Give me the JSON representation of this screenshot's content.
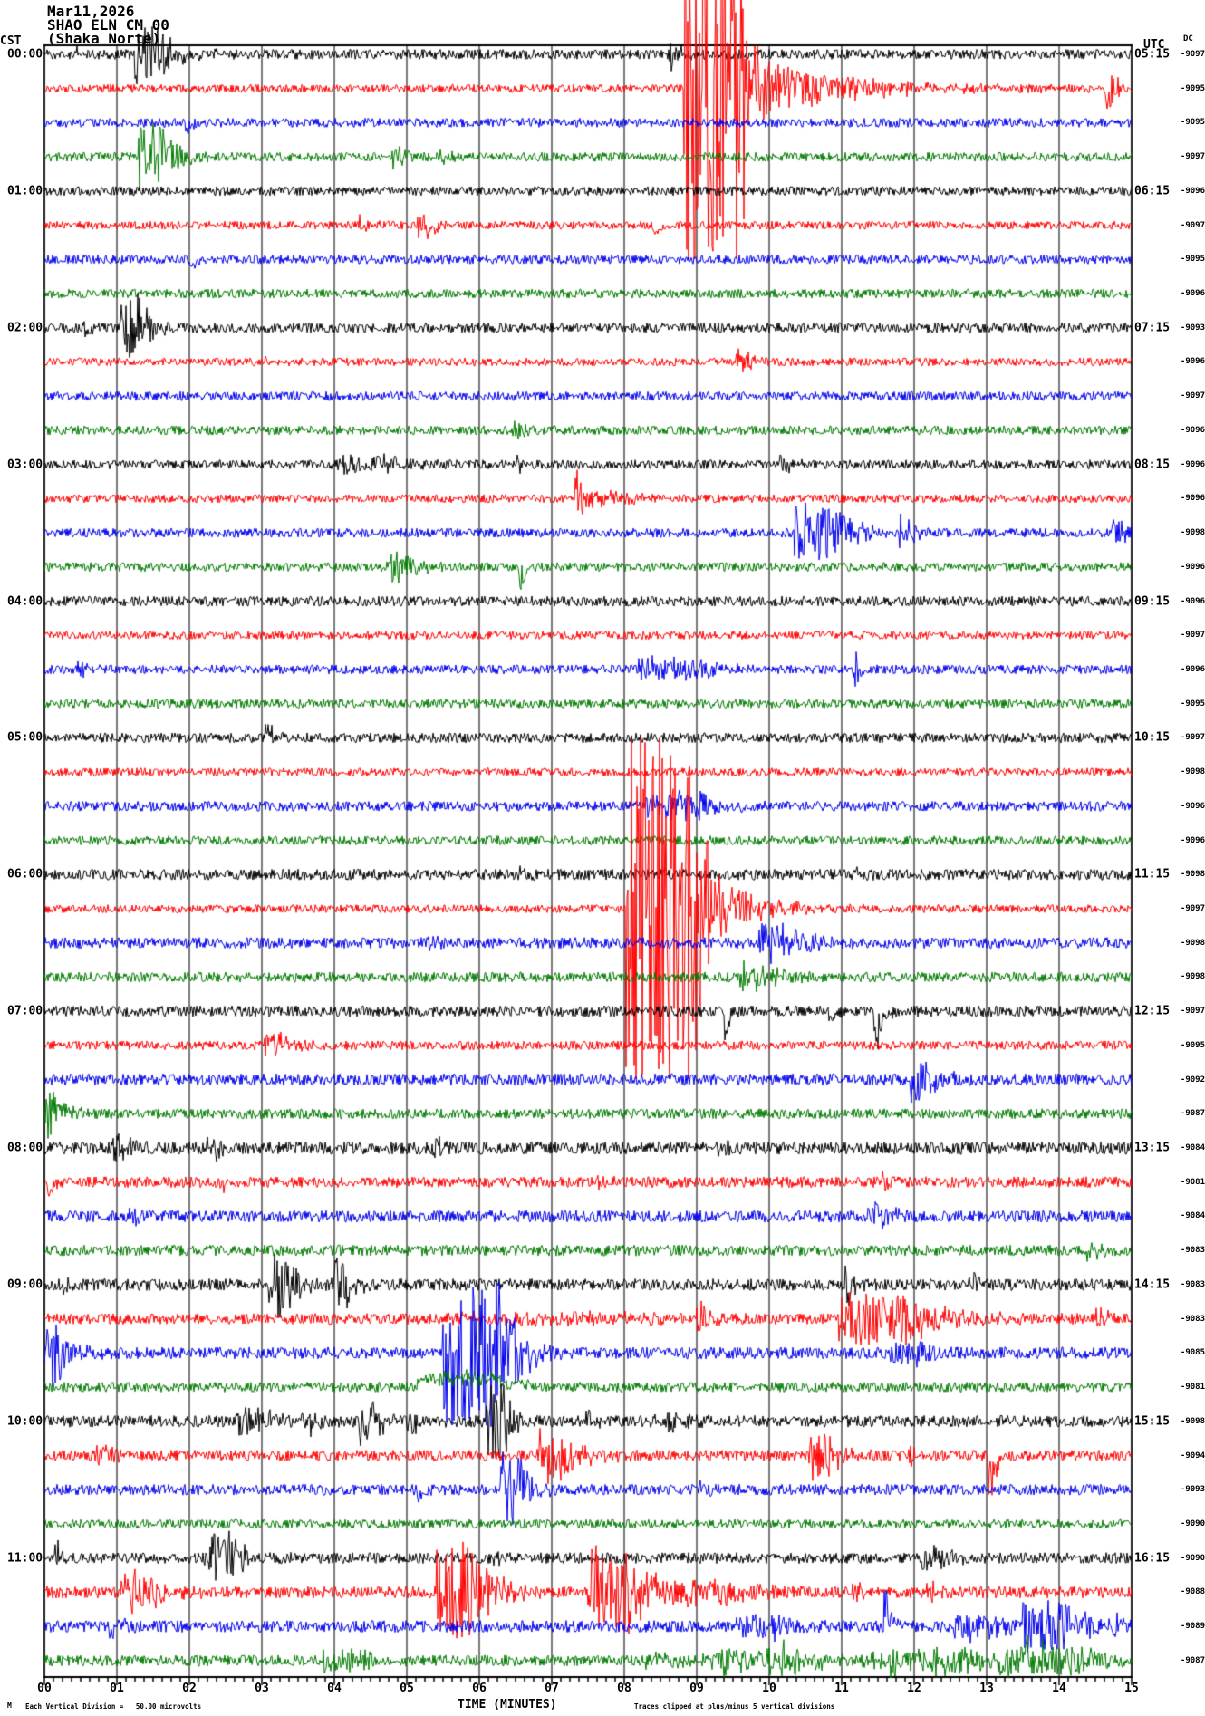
{
  "header": {
    "date": "Mar11,2026",
    "station": "SHAO ELN CM 00",
    "site": "(Shaka Norte)"
  },
  "left_axis": {
    "timezone": "CST",
    "hour_labels": [
      "00:00",
      "01:00",
      "02:00",
      "03:00",
      "04:00",
      "05:00",
      "06:00",
      "07:00",
      "08:00",
      "09:00",
      "10:00",
      "11:00"
    ]
  },
  "right_axis": {
    "timezone": "UTC",
    "dc_header": "DC",
    "hour_labels": [
      "05:15",
      "06:15",
      "07:15",
      "08:15",
      "09:15",
      "10:15",
      "11:15",
      "12:15",
      "13:15",
      "14:15",
      "15:15",
      "16:15"
    ],
    "dc_values": [
      "-9097",
      "-9095",
      "-9095",
      "-9097",
      "-9096",
      "-9097",
      "-9095",
      "-9096",
      "-9093",
      "-9096",
      "-9097",
      "-9096",
      "-9096",
      "-9096",
      "-9098",
      "-9096",
      "-9096",
      "-9097",
      "-9096",
      "-9095",
      "-9097",
      "-9098",
      "-9096",
      "-9096",
      "-9098",
      "-9097",
      "-9098",
      "-9098",
      "-9097",
      "-9095",
      "-9092",
      "-9087",
      "-9084",
      "-9081",
      "-9084",
      "-9083",
      "-9083",
      "-9083",
      "-9085",
      "-9081",
      "-9098",
      "-9094",
      "-9093",
      "-9090",
      "-9090",
      "-9088",
      "-9089",
      "-9087"
    ]
  },
  "x_axis": {
    "title": "TIME (MINUTES)",
    "tick_labels": [
      "00",
      "01",
      "02",
      "03",
      "04",
      "05",
      "06",
      "07",
      "08",
      "09",
      "10",
      "11",
      "12",
      "13",
      "14",
      "15"
    ]
  },
  "footer": {
    "mark": "M",
    "left": "Each Vertical Division =   50.00 microvolts",
    "right": "Traces clipped at plus/minus 5 vertical divisions"
  },
  "colors": {
    "trace_cycle": [
      "#000000",
      "#ff0000",
      "#0000ee",
      "#007a00"
    ],
    "grid": "#7a7a7a",
    "border": "#222222",
    "axis": "#000000",
    "background": "#ffffff"
  },
  "chart_data": {
    "type": "line",
    "subtype": "helicorder-seismogram",
    "x_range": [
      0,
      15
    ],
    "minutes_per_line": 15,
    "lines_per_hour": 4,
    "clip_divisions": 5,
    "microvolts_per_division": 50,
    "grid": "vertical-minute-lines",
    "rows": [
      {
        "b": 5.5,
        "e": [
          {
            "m": 1.25,
            "d": 0.3,
            "a": 30,
            "t": 0.25
          },
          {
            "m": 8.62,
            "d": 0.06,
            "a": 16,
            "t": 0.1
          },
          {
            "m": 0.45,
            "d": 0.06,
            "a": 9,
            "t": 0.06
          }
        ]
      },
      {
        "b": 4.5,
        "e": [
          {
            "m": 8.82,
            "d": 0.78,
            "a": 210,
            "t": 0.12
          },
          {
            "m": 9.6,
            "d": 0.15,
            "a": 40,
            "t": 1.1
          },
          {
            "m": 14.62,
            "d": 0.08,
            "a": 26,
            "t": 0.1
          }
        ]
      },
      {
        "b": 5,
        "e": [
          {
            "m": 1.95,
            "d": 0.04,
            "a": 12,
            "t": 0.06,
            "s": -1
          }
        ]
      },
      {
        "b": 5,
        "e": [
          {
            "m": 1.28,
            "d": 0.3,
            "a": 42,
            "t": 0.2
          },
          {
            "m": 4.8,
            "d": 0.12,
            "a": 12,
            "t": 0.12
          },
          {
            "m": 5.45,
            "d": 0.05,
            "a": 8,
            "t": 0.08
          }
        ]
      },
      {
        "b": 5,
        "e": []
      },
      {
        "b": 4.5,
        "e": [
          {
            "m": 5.15,
            "d": 0.12,
            "a": 14,
            "t": 0.15
          },
          {
            "m": 8.4,
            "d": 0.04,
            "a": 11,
            "t": 0.05,
            "s": -1
          },
          {
            "m": 4.35,
            "d": 0.1,
            "a": 8,
            "t": 0.1
          }
        ]
      },
      {
        "b": 5,
        "e": [
          {
            "m": 2.0,
            "d": 0.04,
            "a": 13,
            "t": 0.05,
            "s": -1
          }
        ]
      },
      {
        "b": 5,
        "e": []
      },
      {
        "b": 5.5,
        "e": [
          {
            "m": 1.05,
            "d": 0.24,
            "a": 36,
            "t": 0.18
          },
          {
            "m": 0.52,
            "d": 0.05,
            "a": 12,
            "t": 0.06
          }
        ]
      },
      {
        "b": 4.5,
        "e": [
          {
            "m": 9.55,
            "d": 0.15,
            "a": 12,
            "t": 0.12
          },
          {
            "m": 3.0,
            "d": 0.05,
            "a": 7,
            "t": 0.05
          }
        ]
      },
      {
        "b": 5,
        "e": []
      },
      {
        "b": 5,
        "e": [
          {
            "m": 6.45,
            "d": 0.1,
            "a": 10,
            "t": 0.1
          }
        ]
      },
      {
        "b": 5,
        "e": [
          {
            "m": 4.05,
            "d": 0.7,
            "a": 8,
            "t": 0.3
          },
          {
            "m": 10.15,
            "d": 0.08,
            "a": 12,
            "t": 0.1
          },
          {
            "m": 6.5,
            "d": 0.05,
            "a": 8,
            "t": 0.05
          }
        ]
      },
      {
        "b": 4.5,
        "e": [
          {
            "m": 7.32,
            "d": 0.05,
            "a": 40,
            "t": 0.06
          },
          {
            "m": 7.4,
            "d": 0.45,
            "a": 9,
            "t": 0.3
          }
        ]
      },
      {
        "b": 5,
        "e": [
          {
            "m": 10.35,
            "d": 0.5,
            "a": 32,
            "t": 0.35
          },
          {
            "m": 11.8,
            "d": 0.1,
            "a": 20,
            "t": 0.12
          },
          {
            "m": 14.72,
            "d": 0.12,
            "a": 14,
            "t": 0.1
          }
        ]
      },
      {
        "b": 5,
        "e": [
          {
            "m": 4.72,
            "d": 0.26,
            "a": 17,
            "t": 0.2
          },
          {
            "m": 6.55,
            "d": 0.04,
            "a": 26,
            "t": 0.06,
            "s": -1
          }
        ]
      },
      {
        "b": 5.5,
        "e": []
      },
      {
        "b": 4.5,
        "e": []
      },
      {
        "b": 5,
        "e": [
          {
            "m": 8.2,
            "d": 0.9,
            "a": 12,
            "t": 0.3
          },
          {
            "m": 11.15,
            "d": 0.05,
            "a": 16,
            "t": 0.08
          },
          {
            "m": 0.45,
            "d": 0.1,
            "a": 8,
            "t": 0.1
          }
        ]
      },
      {
        "b": 5,
        "e": []
      },
      {
        "b": 5.5,
        "e": [
          {
            "m": 3.05,
            "d": 0.06,
            "a": 18,
            "t": 0.08
          }
        ]
      },
      {
        "b": 4.5,
        "e": []
      },
      {
        "b": 5.5,
        "e": [
          {
            "m": 8.3,
            "d": 0.85,
            "a": 14,
            "t": 0.3
          }
        ]
      },
      {
        "b": 5,
        "e": []
      },
      {
        "b": 6,
        "e": [
          {
            "m": 6.55,
            "d": 0.05,
            "a": 9,
            "t": 0.06
          },
          {
            "m": 11.2,
            "d": 0.05,
            "a": 9,
            "t": 0.06
          }
        ]
      },
      {
        "b": 4.5,
        "e": [
          {
            "m": 8.02,
            "d": 0.95,
            "a": 210,
            "t": 0.12
          },
          {
            "m": 8.97,
            "d": 0.2,
            "a": 45,
            "t": 0.55
          }
        ]
      },
      {
        "b": 6,
        "e": [
          {
            "m": 9.85,
            "d": 0.4,
            "a": 20,
            "t": 0.3
          },
          {
            "m": 5.3,
            "d": 0.08,
            "a": 9,
            "t": 0.08
          }
        ]
      },
      {
        "b": 5.5,
        "e": [
          {
            "m": 9.6,
            "d": 0.35,
            "a": 13,
            "t": 0.25
          }
        ]
      },
      {
        "b": 6,
        "e": [
          {
            "m": 9.38,
            "d": 0.04,
            "a": 30,
            "t": 0.05,
            "s": -1
          },
          {
            "m": 10.82,
            "d": 0.05,
            "a": 20,
            "t": 0.06,
            "s": -1
          },
          {
            "m": 11.45,
            "d": 0.06,
            "a": 46,
            "t": 0.07,
            "s": -1
          }
        ]
      },
      {
        "b": 5,
        "e": [
          {
            "m": 3.02,
            "d": 0.25,
            "a": 16,
            "t": 0.2
          }
        ]
      },
      {
        "b": 6.5,
        "e": [
          {
            "m": 11.95,
            "d": 0.22,
            "a": 24,
            "t": 0.2
          }
        ]
      },
      {
        "b": 5.5,
        "e": [
          {
            "m": 0.0,
            "d": 0.18,
            "a": 26,
            "t": 0.15
          }
        ]
      },
      {
        "b": 7,
        "e": [
          {
            "m": 0.95,
            "d": 0.18,
            "a": 13,
            "t": 0.12
          },
          {
            "m": 2.25,
            "d": 0.12,
            "a": 13,
            "t": 0.1
          },
          {
            "m": 5.35,
            "d": 0.1,
            "a": 9,
            "t": 0.1
          },
          {
            "m": 9.3,
            "d": 0.08,
            "a": 8,
            "t": 0.08
          }
        ]
      },
      {
        "b": 6,
        "e": [
          {
            "m": 0.05,
            "d": 0.05,
            "a": 14,
            "t": 0.06,
            "s": -1
          },
          {
            "m": 2.42,
            "d": 0.05,
            "a": 15,
            "t": 0.07
          },
          {
            "m": 7.55,
            "d": 0.1,
            "a": 8,
            "t": 0.1
          },
          {
            "m": 11.55,
            "d": 0.1,
            "a": 10,
            "t": 0.1
          }
        ]
      },
      {
        "b": 6.5,
        "e": [
          {
            "m": 1.15,
            "d": 0.12,
            "a": 9,
            "t": 0.1
          },
          {
            "m": 11.35,
            "d": 0.25,
            "a": 12,
            "t": 0.2
          }
        ]
      },
      {
        "b": 6,
        "e": [
          {
            "m": 14.35,
            "d": 0.15,
            "a": 10,
            "t": 0.12
          }
        ]
      },
      {
        "b": 6.5,
        "e": [
          {
            "m": 3.1,
            "d": 0.22,
            "a": 36,
            "t": 0.18
          },
          {
            "m": 4.0,
            "d": 0.18,
            "a": 26,
            "t": 0.15
          },
          {
            "m": 11.05,
            "d": 0.05,
            "a": 24,
            "t": 0.07
          },
          {
            "m": 12.75,
            "d": 0.08,
            "a": 12,
            "t": 0.08
          },
          {
            "m": 0.25,
            "d": 0.05,
            "a": 10,
            "t": 0.06
          }
        ]
      },
      {
        "b": 6,
        "e": [
          {
            "m": 5.5,
            "d": 3.0,
            "a": 4,
            "t": 0.5
          },
          {
            "m": 9.0,
            "d": 0.1,
            "a": 18,
            "t": 0.12
          },
          {
            "m": 10.95,
            "d": 0.95,
            "a": 30,
            "t": 0.5
          },
          {
            "m": 14.5,
            "d": 0.08,
            "a": 12,
            "t": 0.1
          }
        ]
      },
      {
        "b": 6.5,
        "e": [
          {
            "m": 0.0,
            "d": 0.2,
            "a": 34,
            "t": 0.18
          },
          {
            "m": 5.5,
            "d": 0.62,
            "a": 78,
            "t": 0.3
          },
          {
            "m": 6.1,
            "d": 0.15,
            "a": 55,
            "t": 0.25
          },
          {
            "m": 11.65,
            "d": 0.4,
            "a": 12,
            "t": 0.2
          }
        ]
      },
      {
        "b": 5.5,
        "e": [
          {
            "m": 5.15,
            "d": 1.05,
            "a": 9,
            "t": 0.3,
            "lf": 1
          },
          {
            "m": 5.3,
            "d": 1.0,
            "a": 6,
            "t": 0.3
          }
        ]
      },
      {
        "b": 6.5,
        "e": [
          {
            "m": 2.65,
            "d": 0.3,
            "a": 20,
            "t": 0.2
          },
          {
            "m": 3.55,
            "d": 0.12,
            "a": 16,
            "t": 0.12
          },
          {
            "m": 4.35,
            "d": 0.18,
            "a": 26,
            "t": 0.15
          },
          {
            "m": 5.0,
            "d": 0.12,
            "a": 14,
            "t": 0.1
          },
          {
            "m": 6.1,
            "d": 0.24,
            "a": 46,
            "t": 0.15
          },
          {
            "m": 7.45,
            "d": 0.08,
            "a": 12,
            "t": 0.08
          },
          {
            "m": 8.3,
            "d": 0.5,
            "a": 7,
            "t": 0.2
          }
        ]
      },
      {
        "b": 6,
        "e": [
          {
            "m": 0.72,
            "d": 0.15,
            "a": 11,
            "t": 0.12
          },
          {
            "m": 6.8,
            "d": 0.35,
            "a": 28,
            "t": 0.3
          },
          {
            "m": 10.55,
            "d": 0.22,
            "a": 26,
            "t": 0.2
          },
          {
            "m": 13.02,
            "d": 0.05,
            "a": 58,
            "t": 0.07,
            "s": -1
          },
          {
            "m": 11.9,
            "d": 0.08,
            "a": 10,
            "t": 0.08
          }
        ]
      },
      {
        "b": 6,
        "e": [
          {
            "m": 5.15,
            "d": 0.05,
            "a": 13,
            "t": 0.06,
            "s": -1
          },
          {
            "m": 6.3,
            "d": 0.22,
            "a": 42,
            "t": 0.18
          },
          {
            "m": 9.0,
            "d": 0.15,
            "a": 9,
            "t": 0.12
          }
        ]
      },
      {
        "b": 5,
        "e": []
      },
      {
        "b": 6,
        "e": [
          {
            "m": 0.15,
            "d": 0.05,
            "a": 16,
            "t": 0.06
          },
          {
            "m": 2.2,
            "d": 0.38,
            "a": 24,
            "t": 0.22
          },
          {
            "m": 6.2,
            "d": 0.08,
            "a": 10,
            "t": 0.08
          },
          {
            "m": 12.1,
            "d": 0.3,
            "a": 11,
            "t": 0.2
          }
        ]
      },
      {
        "b": 6.5,
        "e": [
          {
            "m": 1.05,
            "d": 0.42,
            "a": 24,
            "t": 0.22
          },
          {
            "m": 5.4,
            "d": 0.5,
            "a": 52,
            "t": 0.3
          },
          {
            "m": 7.5,
            "d": 0.6,
            "a": 48,
            "t": 0.35
          },
          {
            "m": 8.6,
            "d": 1.0,
            "a": 12,
            "t": 0.3
          },
          {
            "m": 11.15,
            "d": 0.1,
            "a": 12,
            "t": 0.1
          },
          {
            "m": 12.15,
            "d": 0.08,
            "a": 14,
            "t": 0.1
          }
        ]
      },
      {
        "b": 6.5,
        "e": [
          {
            "m": 0.9,
            "d": 0.15,
            "a": 9,
            "t": 0.12
          },
          {
            "m": 9.55,
            "d": 0.6,
            "a": 12,
            "t": 0.25
          },
          {
            "m": 11.58,
            "d": 0.05,
            "a": 40,
            "t": 0.07,
            "s": 1
          },
          {
            "m": 12.55,
            "d": 0.55,
            "a": 16,
            "t": 0.25
          },
          {
            "m": 13.5,
            "d": 0.65,
            "a": 28,
            "t": 0.3
          },
          {
            "m": 14.75,
            "d": 0.1,
            "a": 12,
            "t": 0.1
          }
        ]
      },
      {
        "b": 6,
        "e": [
          {
            "m": 3.85,
            "d": 0.55,
            "a": 10,
            "t": 0.25
          },
          {
            "m": 8.3,
            "d": 6.5,
            "a": 5,
            "t": 0.5
          },
          {
            "m": 9.35,
            "d": 1.05,
            "a": 13,
            "t": 0.3
          },
          {
            "m": 11.65,
            "d": 1.05,
            "a": 13,
            "t": 0.3
          },
          {
            "m": 13.15,
            "d": 1.15,
            "a": 15,
            "t": 0.3
          },
          {
            "m": 13.55,
            "d": 0.06,
            "a": 26,
            "t": 0.08
          }
        ]
      }
    ]
  }
}
